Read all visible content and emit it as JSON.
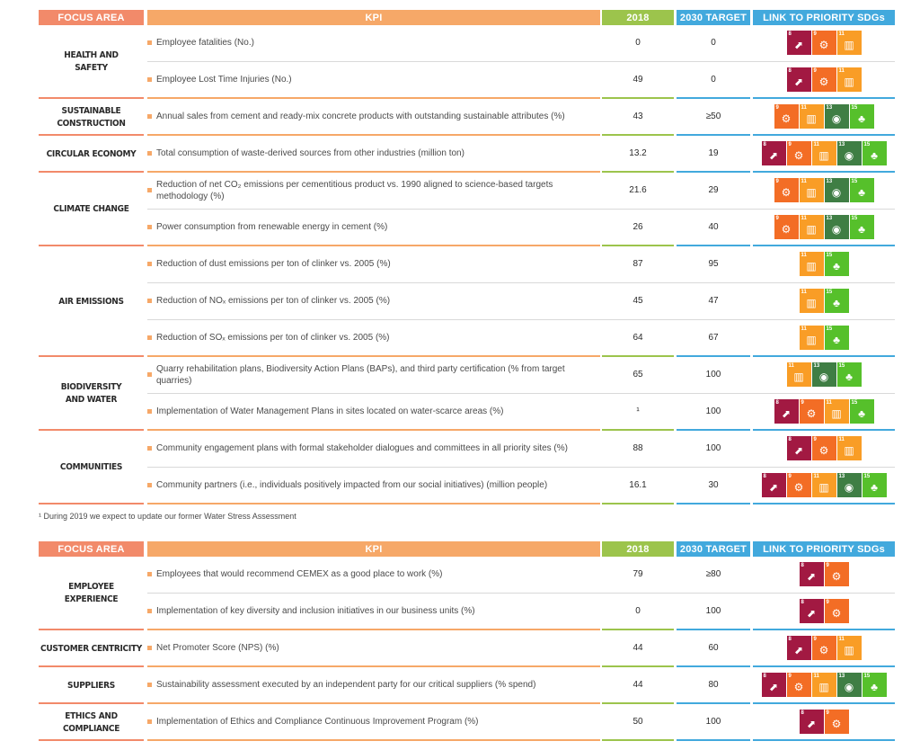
{
  "headers": {
    "focus_area": "FOCUS AREA",
    "kpi": "KPI",
    "year": "2018",
    "target": "2030 TARGET",
    "sdg": "LINK TO PRIORITY SDGs"
  },
  "colors": {
    "focus_header": "#f28a6a",
    "kpi_header": "#f6a868",
    "year_header": "#9cc44c",
    "target_header": "#42a9dd",
    "sdg_8": "#a21942",
    "sdg_9": "#f36d25",
    "sdg_11": "#f99d26",
    "sdg_13": "#3f7e44",
    "sdg_15": "#56c02b"
  },
  "table1": [
    {
      "focus": "HEALTH AND\nSAFETY",
      "kpis": [
        {
          "text": "Employee fatalities (No.)",
          "v2018": "0",
          "target": "0",
          "sdgs": [
            8,
            9,
            11
          ]
        },
        {
          "text": "Employee Lost Time Injuries (No.)",
          "v2018": "49",
          "target": "0",
          "sdgs": [
            8,
            9,
            11
          ]
        }
      ]
    },
    {
      "focus": "SUSTAINABLE\nCONSTRUCTION",
      "kpis": [
        {
          "text": "Annual sales from cement and ready-mix concrete products with outstanding sustainable attributes (%)",
          "v2018": "43",
          "target": "≥50",
          "sdgs": [
            9,
            11,
            13,
            15
          ]
        }
      ]
    },
    {
      "focus": "CIRCULAR ECONOMY",
      "kpis": [
        {
          "text": "Total consumption of waste-derived sources from other industries (million ton)",
          "v2018": "13.2",
          "target": "19",
          "sdgs": [
            8,
            9,
            11,
            13,
            15
          ]
        }
      ]
    },
    {
      "focus": "CLIMATE CHANGE",
      "kpis": [
        {
          "text": "Reduction of net CO₂ emissions per cementitious product vs. 1990 aligned to science-based targets methodology (%)",
          "v2018": "21.6",
          "target": "29",
          "sdgs": [
            9,
            11,
            13,
            15
          ]
        },
        {
          "text": "Power consumption from renewable energy in cement (%)",
          "v2018": "26",
          "target": "40",
          "sdgs": [
            9,
            11,
            13,
            15
          ]
        }
      ]
    },
    {
      "focus": "AIR EMISSIONS",
      "kpis": [
        {
          "text": "Reduction of dust emissions per ton of clinker vs. 2005 (%)",
          "v2018": "87",
          "target": "95",
          "sdgs": [
            11,
            15
          ]
        },
        {
          "text": "Reduction of NOₓ emissions per ton of clinker vs. 2005 (%)",
          "v2018": "45",
          "target": "47",
          "sdgs": [
            11,
            15
          ]
        },
        {
          "text": "Reduction of SOₓ emissions per ton of clinker vs. 2005 (%)",
          "v2018": "64",
          "target": "67",
          "sdgs": [
            11,
            15
          ]
        }
      ]
    },
    {
      "focus": "BIODIVERSITY\nAND WATER",
      "kpis": [
        {
          "text": "Quarry rehabilitation plans, Biodiversity Action Plans (BAPs), and third party certification (% from target quarries)",
          "v2018": "65",
          "target": "100",
          "sdgs": [
            11,
            13,
            15
          ]
        },
        {
          "text": "Implementation of Water Management Plans in sites located on water-scarce areas (%)",
          "v2018": "¹",
          "target": "100",
          "sdgs": [
            8,
            9,
            11,
            15
          ]
        }
      ]
    },
    {
      "focus": "COMMUNITIES",
      "kpis": [
        {
          "text": "Community engagement plans with formal stakeholder dialogues and committees in all priority sites (%)",
          "v2018": "88",
          "target": "100",
          "sdgs": [
            8,
            9,
            11
          ]
        },
        {
          "text": "Community partners (i.e., individuals positively impacted from our social initiatives) (million people)",
          "v2018": "16.1",
          "target": "30",
          "sdgs": [
            8,
            9,
            11,
            13,
            15
          ]
        }
      ]
    }
  ],
  "footnote": "¹ During 2019 we expect to update our former Water Stress Assessment",
  "table2": [
    {
      "focus": "EMPLOYEE\nEXPERIENCE",
      "kpis": [
        {
          "text": "Employees that would recommend CEMEX as a good place to work (%)",
          "v2018": "79",
          "target": "≥80",
          "sdgs": [
            8,
            9
          ]
        },
        {
          "text": "Implementation of key diversity and inclusion initiatives in our business units (%)",
          "v2018": "0",
          "target": "100",
          "sdgs": [
            8,
            9
          ]
        }
      ]
    },
    {
      "focus": "CUSTOMER CENTRICITY",
      "kpis": [
        {
          "text": "Net Promoter Score (NPS) (%)",
          "v2018": "44",
          "target": "60",
          "sdgs": [
            8,
            9,
            11
          ]
        }
      ]
    },
    {
      "focus": "SUPPLIERS",
      "kpis": [
        {
          "text": "Sustainability assessment executed by an independent party for our critical suppliers (% spend)",
          "v2018": "44",
          "target": "80",
          "sdgs": [
            8,
            9,
            11,
            13,
            15
          ]
        }
      ]
    },
    {
      "focus": "ETHICS AND\nCOMPLIANCE",
      "kpis": [
        {
          "text": "Implementation of Ethics and Compliance Continuous Improvement Program (%)",
          "v2018": "50",
          "target": "100",
          "sdgs": [
            8,
            9
          ]
        }
      ]
    }
  ]
}
